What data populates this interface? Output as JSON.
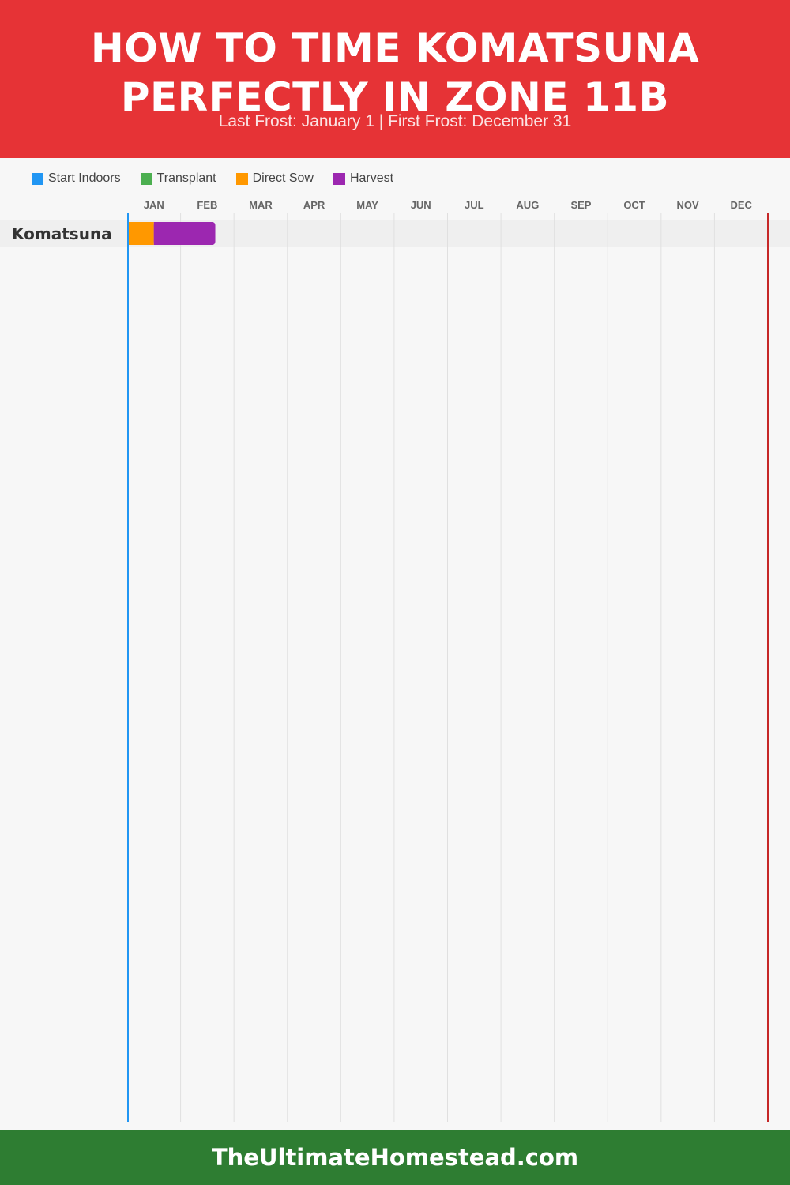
{
  "header": {
    "title_line1": "HOW TO TIME KOMATSUNA",
    "title_line2": "PERFECTLY IN ZONE 11B",
    "subtitle": "Last Frost: January 1 | First Frost: December 31"
  },
  "legend": [
    {
      "label": "Start Indoors",
      "color": "#2196f3"
    },
    {
      "label": "Transplant",
      "color": "#4caf50"
    },
    {
      "label": "Direct Sow",
      "color": "#ff9800"
    },
    {
      "label": "Harvest",
      "color": "#9c27b0"
    }
  ],
  "chart_data": {
    "type": "gantt",
    "months": [
      "JAN",
      "FEB",
      "MAR",
      "APR",
      "MAY",
      "JUN",
      "JUL",
      "AUG",
      "SEP",
      "OCT",
      "NOV",
      "DEC"
    ],
    "x_unit": "month (0 = start of January, 12 = end of December)",
    "xlim": [
      0,
      12
    ],
    "last_frost_month": 0,
    "first_frost_month": 12,
    "last_frost_color": "#2196f3",
    "first_frost_color": "#c62828",
    "rows": [
      {
        "crop": "Komatsuna",
        "segments": [
          {
            "phase": "Direct Sow",
            "start": 0,
            "end": 0.5,
            "color": "#ff9800"
          },
          {
            "phase": "Harvest",
            "start": 0.5,
            "end": 1.65,
            "color": "#9c27b0"
          }
        ]
      }
    ]
  },
  "footer": {
    "site": "TheUltimateHomestead.com"
  }
}
